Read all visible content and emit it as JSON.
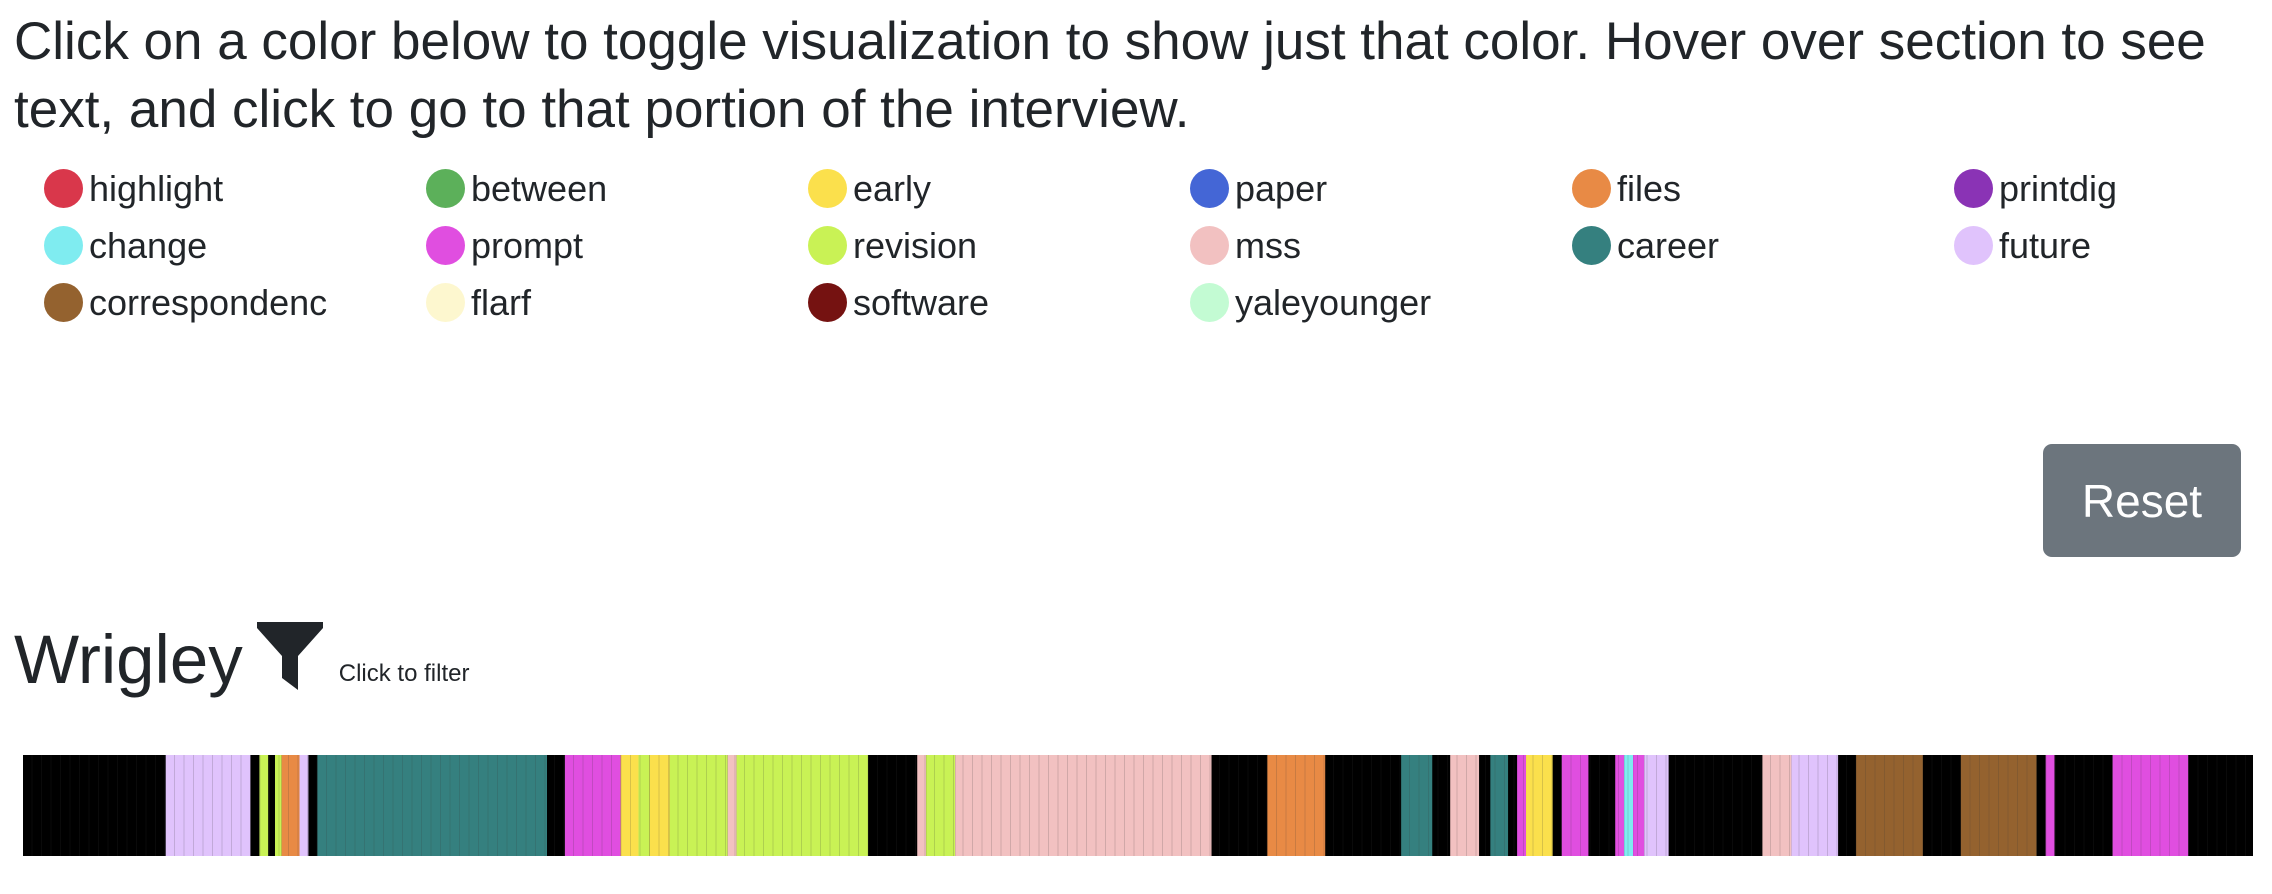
{
  "instructions": "Click on a color below to toggle visualization to show just that color. Hover over section to see text, and click to go to that portion of the interview.",
  "legend": [
    {
      "label": "highlight",
      "color": "#d9374b"
    },
    {
      "label": "between",
      "color": "#5cb05a"
    },
    {
      "label": "early",
      "color": "#fbe04c"
    },
    {
      "label": "paper",
      "color": "#4466d6"
    },
    {
      "label": "files",
      "color": "#e88a45"
    },
    {
      "label": "printdig",
      "color": "#8a33b5"
    },
    {
      "label": "change",
      "color": "#7fecf0"
    },
    {
      "label": "prompt",
      "color": "#e04ee0"
    },
    {
      "label": "revision",
      "color": "#c9f255"
    },
    {
      "label": "mss",
      "color": "#f2c1c1"
    },
    {
      "label": "career",
      "color": "#35807f"
    },
    {
      "label": "future",
      "color": "#e0c3fc"
    },
    {
      "label": "correspondenc",
      "color": "#94622f"
    },
    {
      "label": "flarf",
      "color": "#fdf7cf"
    },
    {
      "label": "software",
      "color": "#751211"
    },
    {
      "label": "yaleyounger",
      "color": "#c3fbd3"
    }
  ],
  "reset_label": "Reset",
  "person": {
    "name": "Wrigley",
    "filter_hint": "Click to filter",
    "filter_icon": "filter-funnel-icon"
  },
  "timeline": {
    "background": "#000000",
    "line_color": "#3a3a3a",
    "segments": [
      {
        "start": 0.0,
        "end": 0.064,
        "color": "#000000"
      },
      {
        "start": 0.064,
        "end": 0.102,
        "color": "#e0c3fc"
      },
      {
        "start": 0.102,
        "end": 0.106,
        "color": "#000000"
      },
      {
        "start": 0.106,
        "end": 0.11,
        "color": "#c9f255"
      },
      {
        "start": 0.11,
        "end": 0.113,
        "color": "#000000"
      },
      {
        "start": 0.113,
        "end": 0.116,
        "color": "#c9f255"
      },
      {
        "start": 0.116,
        "end": 0.124,
        "color": "#e88a45"
      },
      {
        "start": 0.124,
        "end": 0.128,
        "color": "#e0c3fc"
      },
      {
        "start": 0.128,
        "end": 0.132,
        "color": "#000000"
      },
      {
        "start": 0.132,
        "end": 0.235,
        "color": "#35807f"
      },
      {
        "start": 0.235,
        "end": 0.243,
        "color": "#000000"
      },
      {
        "start": 0.243,
        "end": 0.268,
        "color": "#e04ee0"
      },
      {
        "start": 0.268,
        "end": 0.276,
        "color": "#fbe04c"
      },
      {
        "start": 0.276,
        "end": 0.281,
        "color": "#c9f255"
      },
      {
        "start": 0.281,
        "end": 0.29,
        "color": "#fbe04c"
      },
      {
        "start": 0.29,
        "end": 0.316,
        "color": "#c9f255"
      },
      {
        "start": 0.316,
        "end": 0.32,
        "color": "#f2c1c1"
      },
      {
        "start": 0.32,
        "end": 0.379,
        "color": "#c9f255"
      },
      {
        "start": 0.379,
        "end": 0.401,
        "color": "#000000"
      },
      {
        "start": 0.401,
        "end": 0.405,
        "color": "#f2c1c1"
      },
      {
        "start": 0.405,
        "end": 0.418,
        "color": "#c9f255"
      },
      {
        "start": 0.418,
        "end": 0.533,
        "color": "#f2c1c1"
      },
      {
        "start": 0.533,
        "end": 0.558,
        "color": "#000000"
      },
      {
        "start": 0.558,
        "end": 0.584,
        "color": "#e88a45"
      },
      {
        "start": 0.584,
        "end": 0.618,
        "color": "#000000"
      },
      {
        "start": 0.618,
        "end": 0.632,
        "color": "#35807f"
      },
      {
        "start": 0.632,
        "end": 0.64,
        "color": "#000000"
      },
      {
        "start": 0.64,
        "end": 0.653,
        "color": "#f2c1c1"
      },
      {
        "start": 0.653,
        "end": 0.658,
        "color": "#000000"
      },
      {
        "start": 0.658,
        "end": 0.666,
        "color": "#35807f"
      },
      {
        "start": 0.666,
        "end": 0.67,
        "color": "#000000"
      },
      {
        "start": 0.67,
        "end": 0.674,
        "color": "#e04ee0"
      },
      {
        "start": 0.674,
        "end": 0.686,
        "color": "#fbe04c"
      },
      {
        "start": 0.686,
        "end": 0.69,
        "color": "#000000"
      },
      {
        "start": 0.69,
        "end": 0.702,
        "color": "#e04ee0"
      },
      {
        "start": 0.702,
        "end": 0.714,
        "color": "#000000"
      },
      {
        "start": 0.714,
        "end": 0.718,
        "color": "#e04ee0"
      },
      {
        "start": 0.718,
        "end": 0.722,
        "color": "#7fecf0"
      },
      {
        "start": 0.722,
        "end": 0.727,
        "color": "#e04ee0"
      },
      {
        "start": 0.727,
        "end": 0.738,
        "color": "#e0c3fc"
      },
      {
        "start": 0.738,
        "end": 0.78,
        "color": "#000000"
      },
      {
        "start": 0.78,
        "end": 0.793,
        "color": "#f2c1c1"
      },
      {
        "start": 0.793,
        "end": 0.814,
        "color": "#e0c3fc"
      },
      {
        "start": 0.814,
        "end": 0.822,
        "color": "#000000"
      },
      {
        "start": 0.822,
        "end": 0.852,
        "color": "#94622f"
      },
      {
        "start": 0.852,
        "end": 0.869,
        "color": "#000000"
      },
      {
        "start": 0.869,
        "end": 0.903,
        "color": "#94622f"
      },
      {
        "start": 0.903,
        "end": 0.907,
        "color": "#000000"
      },
      {
        "start": 0.907,
        "end": 0.911,
        "color": "#e04ee0"
      },
      {
        "start": 0.911,
        "end": 0.937,
        "color": "#000000"
      },
      {
        "start": 0.937,
        "end": 0.971,
        "color": "#e04ee0"
      },
      {
        "start": 0.971,
        "end": 1.0,
        "color": "#000000"
      }
    ]
  }
}
